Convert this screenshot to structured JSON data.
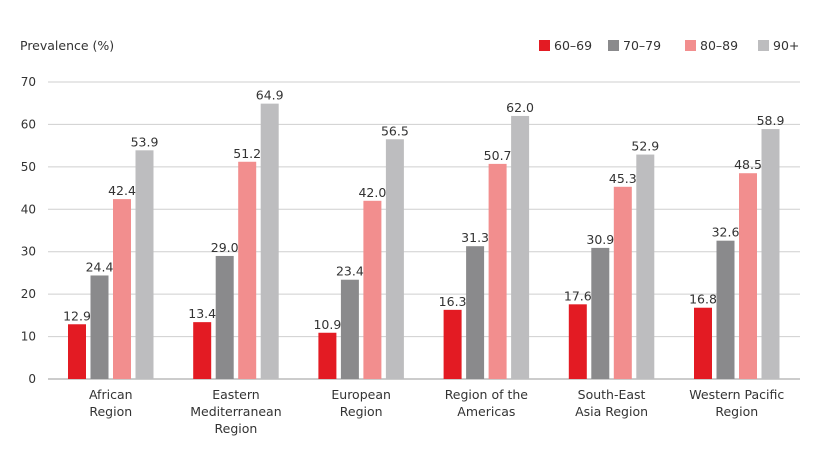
{
  "chart_data": {
    "type": "bar",
    "ylabel": "Prevalence (%)",
    "ylim": [
      0,
      70
    ],
    "yticks": [
      0,
      10,
      20,
      30,
      40,
      50,
      60,
      70
    ],
    "grid": true,
    "legend_position": "top-right",
    "categories": [
      [
        "African",
        "Region"
      ],
      [
        "Eastern",
        "Mediterranean",
        "Region"
      ],
      [
        "European",
        "Region"
      ],
      [
        "Region of the",
        "Americas"
      ],
      [
        "South-East",
        "Asia Region"
      ],
      [
        "Western Pacific",
        "Region"
      ]
    ],
    "series": [
      {
        "name": "60–69",
        "color": "#e31b23",
        "values": [
          12.9,
          13.4,
          10.9,
          16.3,
          17.6,
          16.8
        ]
      },
      {
        "name": "70–79",
        "color": "#8a8a8c",
        "values": [
          24.4,
          29.0,
          23.4,
          31.3,
          30.9,
          32.6
        ]
      },
      {
        "name": "80–89",
        "color": "#f28e8e",
        "values": [
          42.4,
          51.2,
          42.0,
          50.7,
          45.3,
          48.5
        ]
      },
      {
        "name": "90+",
        "color": "#bdbdbf",
        "values": [
          53.9,
          64.9,
          56.5,
          62.0,
          52.9,
          58.9
        ]
      }
    ]
  }
}
